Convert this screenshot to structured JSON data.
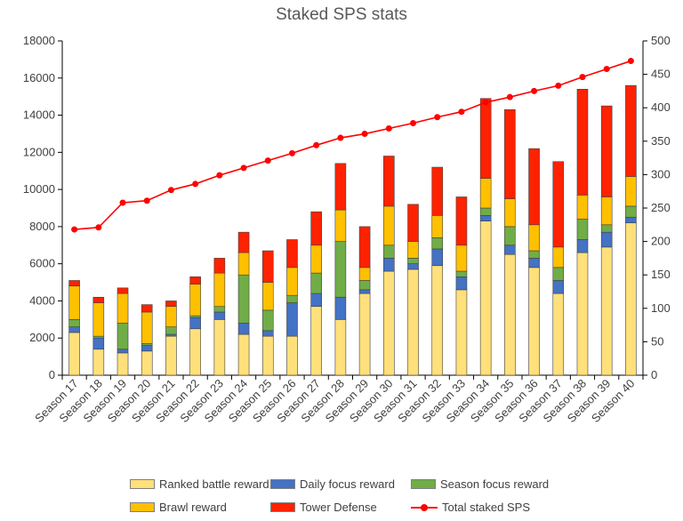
{
  "chart_data": {
    "type": "bar",
    "stacked": true,
    "title": "Staked SPS stats",
    "categories": [
      "Season 17",
      "Season 18",
      "Season 19",
      "Season 20",
      "Season 21",
      "Season 22",
      "Season 23",
      "Season 24",
      "Season 25",
      "Season 26",
      "Season 27",
      "Season 28",
      "Season 29",
      "Season 30",
      "Season 31",
      "Season 32",
      "Season 33",
      "Season 34",
      "Season 35",
      "Season 36",
      "Season 37",
      "Season 38",
      "Season 39",
      "Season 40"
    ],
    "ylim": [
      0,
      18000
    ],
    "yticks": [
      0,
      2000,
      4000,
      6000,
      8000,
      10000,
      12000,
      14000,
      16000,
      18000
    ],
    "y2lim": [
      0,
      500
    ],
    "y2ticks": [
      0,
      50,
      100,
      150,
      200,
      250,
      300,
      350,
      400,
      450,
      500
    ],
    "series": [
      {
        "name": "Ranked battle reward",
        "color": "#ffe07a",
        "values": [
          2300,
          1400,
          1200,
          1300,
          2100,
          2500,
          3000,
          2200,
          2100,
          2100,
          3700,
          3000,
          4400,
          5600,
          5700,
          5900,
          4600,
          8300,
          6500,
          5800,
          4400,
          6600,
          6900,
          8200
        ]
      },
      {
        "name": "Daily focus reward",
        "color": "#4472c4",
        "values": [
          300,
          600,
          200,
          300,
          100,
          600,
          400,
          600,
          300,
          1800,
          700,
          1200,
          200,
          700,
          300,
          900,
          700,
          300,
          500,
          500,
          700,
          700,
          800,
          300
        ]
      },
      {
        "name": "Season focus reward",
        "color": "#70ad47",
        "values": [
          400,
          100,
          1400,
          100,
          400,
          100,
          300,
          2600,
          1100,
          400,
          1100,
          3000,
          500,
          700,
          300,
          600,
          300,
          400,
          1000,
          400,
          700,
          1100,
          400,
          600
        ]
      },
      {
        "name": "Brawl reward",
        "color": "#ffc000",
        "values": [
          1800,
          1800,
          1600,
          1700,
          1100,
          1700,
          1800,
          1200,
          1500,
          1500,
          1500,
          1700,
          700,
          2100,
          900,
          1200,
          1400,
          1600,
          1500,
          1400,
          1100,
          1300,
          1500,
          1600
        ]
      },
      {
        "name": "Tower Defense",
        "color": "#ff2200",
        "values": [
          300,
          300,
          300,
          400,
          300,
          400,
          800,
          1100,
          1700,
          1500,
          1800,
          2500,
          2200,
          2700,
          2000,
          2600,
          2600,
          4300,
          4800,
          4100,
          4600,
          5700,
          4900,
          4900
        ]
      }
    ],
    "line": {
      "name": "Total staked SPS",
      "color": "#ff0000",
      "axis": "secondary",
      "values": [
        218,
        221,
        258,
        261,
        277,
        286,
        299,
        310,
        321,
        332,
        344,
        355,
        361,
        369,
        377,
        386,
        394,
        408,
        416,
        425,
        433,
        446,
        458,
        470
      ]
    },
    "legend_position": "bottom",
    "grid": false
  }
}
